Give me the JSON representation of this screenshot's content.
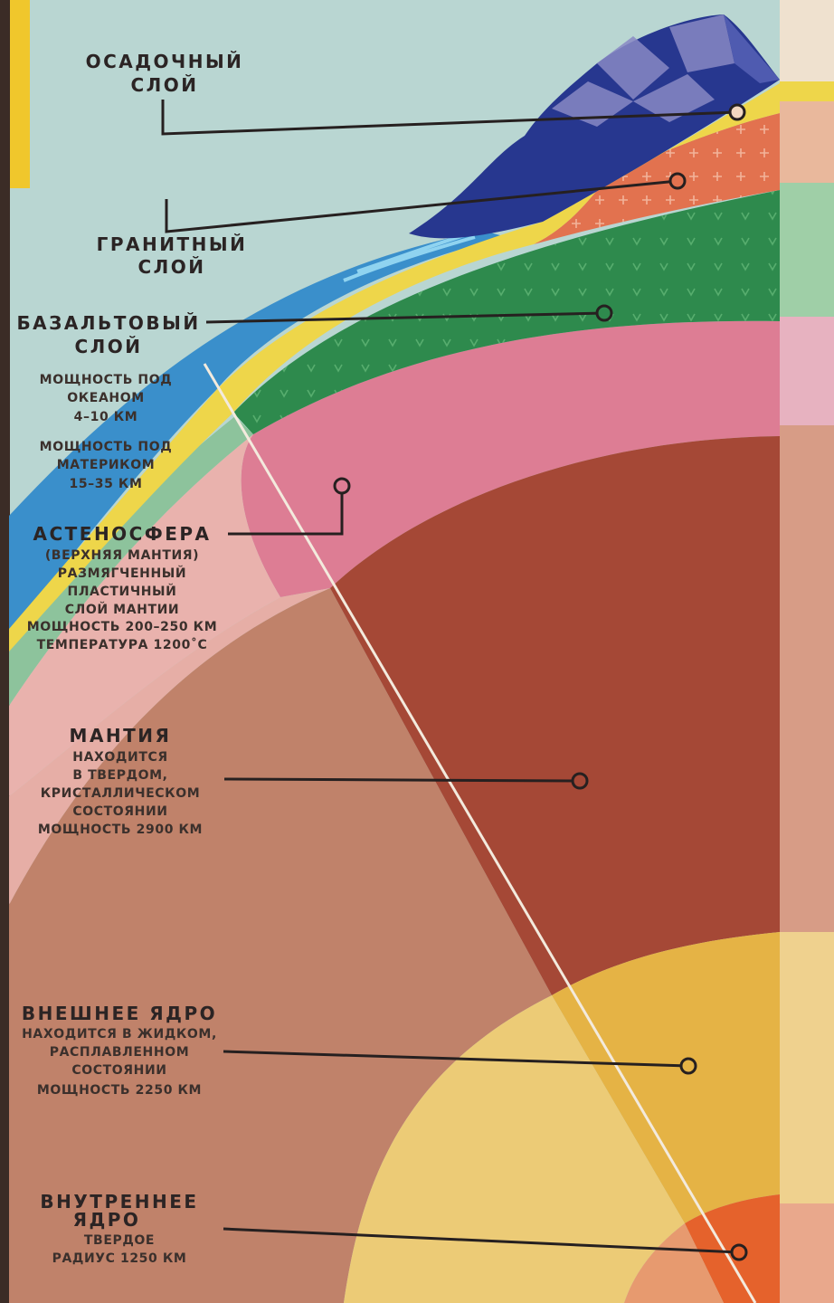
{
  "labels": {
    "sedimentary": {
      "title": [
        "ОСАДОЧНЫЙ",
        "СЛОЙ"
      ]
    },
    "granite": {
      "title": [
        "ГРАНИТНЫЙ",
        "СЛОЙ"
      ]
    },
    "basalt": {
      "title": [
        "БАЗАЛЬТОВЫЙ",
        "СЛОЙ"
      ],
      "details": [
        "МОЩНОСТЬ ПОД",
        "ОКЕАНОМ",
        "4–10 КМ",
        "МОЩНОСТЬ ПОД",
        "МАТЕРИКОМ",
        "15–35 КМ"
      ]
    },
    "asthenosphere": {
      "title": [
        "АСТЕНОСФЕРА"
      ],
      "details": [
        "(ВЕРХНЯЯ МАНТИЯ)",
        "РАЗМЯГЧЕННЫЙ",
        "ПЛАСТИЧНЫЙ",
        "СЛОЙ МАНТИИ",
        "МОЩНОСТЬ 200–250 КМ",
        "ТЕМПЕРАТУРА 1200˚С"
      ]
    },
    "mantle": {
      "title": [
        "МАНТИЯ"
      ],
      "details": [
        "НАХОДИТСЯ",
        "В ТВЕРДОМ,",
        "КРИСТАЛЛИЧЕСКОМ",
        "СОСТОЯНИИ",
        "МОЩНОСТЬ 2900 КМ"
      ]
    },
    "outer_core": {
      "title": [
        "ВНЕШНЕЕ ЯДРО"
      ],
      "details": [
        "НАХОДИТСЯ В ЖИДКОМ,",
        "РАСПЛАВЛЕННОМ",
        "СОСТОЯНИИ",
        "МОЩНОСТЬ 2250 КМ"
      ]
    },
    "inner_core": {
      "title": [
        "ВНУТРЕННЕЕ",
        "ЯДРО"
      ],
      "details": [
        "ТВЕРДОЕ",
        "РАДИУС 1250 КМ"
      ]
    }
  },
  "colors": {
    "sky": "#b9d6d2",
    "ocean": "#3a8fcb",
    "sediment": "#eed64a",
    "granite": "#e2724f",
    "basalt": "#2e8a4d",
    "asthenosphere": "#dd7d94",
    "mantle": "#a54836",
    "mantle_light": "#c0826a",
    "outer_core": "#e5b345",
    "inner_core": "#e5622c",
    "mountain": "#27378f",
    "leader": "#262020"
  }
}
